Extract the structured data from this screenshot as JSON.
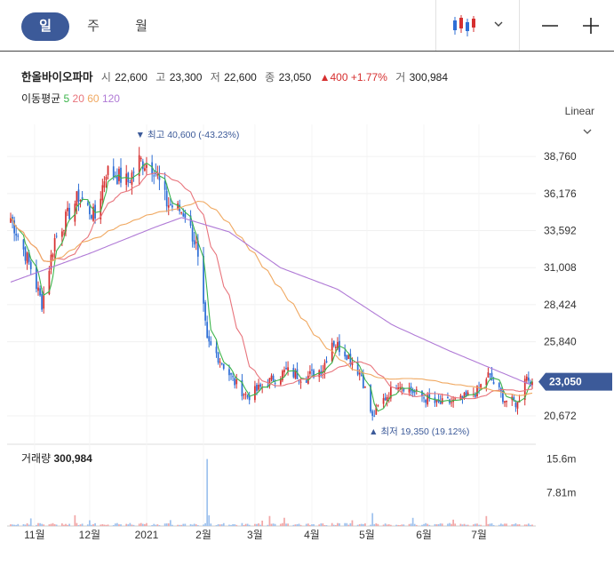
{
  "tabs": [
    {
      "label": "일",
      "active": true
    },
    {
      "label": "주",
      "active": false
    },
    {
      "label": "월",
      "active": false
    }
  ],
  "toolbar": {
    "chart_type_icon": "candlestick-icon",
    "dropdown_icon": "chevron-down-icon",
    "zoom_out_icon": "minus-icon",
    "zoom_in_icon": "plus-icon"
  },
  "stock": {
    "name": "한올바이오파마",
    "open_label": "시",
    "open": "22,600",
    "high_label": "고",
    "high": "23,300",
    "low_label": "저",
    "low": "22,600",
    "close_label": "종",
    "close": "23,050",
    "change": "▲400 +1.77%",
    "volume_label": "거",
    "volume": "300,984"
  },
  "ma": {
    "label": "이동평균",
    "p5": "5",
    "p20": "20",
    "p60": "60",
    "p120": "120"
  },
  "scale_mode": "Linear",
  "colors": {
    "up": "#d62f2f",
    "down": "#2f6fd6",
    "ma5": "#3cb44b",
    "ma20": "#e8747c",
    "ma60": "#f0a860",
    "ma120": "#b07ad6",
    "price_tag": "#3c5a99",
    "tab_active": "#3c5a99"
  },
  "chart_data": {
    "type": "candlestick",
    "price_axis": {
      "ticks": [
        "38,760",
        "36,176",
        "33,592",
        "31,008",
        "28,424",
        "25,840",
        "20,672"
      ],
      "tick_values": [
        38760,
        36176,
        33592,
        31008,
        28424,
        25840,
        20672
      ],
      "range": [
        19000,
        41000
      ]
    },
    "current_price": {
      "label": "23,050",
      "value": 23050
    },
    "high_annotation": {
      "text": "▼ 최고 40,600 (-43.23%)",
      "value": 40600
    },
    "low_annotation": {
      "text": "▲ 최저 19,350 (19.12%)",
      "value": 19350
    },
    "x_axis": {
      "labels": [
        "11월",
        "12월",
        "2021",
        "2월",
        "3월",
        "4월",
        "5월",
        "6월",
        "7월"
      ]
    },
    "volume": {
      "title": "거래량",
      "value": "300,984",
      "ticks": [
        "15.6m",
        "7.81m"
      ],
      "tick_values": [
        15600000,
        7810000
      ]
    },
    "price_keypoints": [
      {
        "x": "10-19",
        "price": 34500
      },
      {
        "x": "10-30",
        "price": 31000
      },
      {
        "x": "11-05",
        "price": 28500
      },
      {
        "x": "11-12",
        "price": 33000
      },
      {
        "x": "11-25",
        "price": 36000
      },
      {
        "x": "12-04",
        "price": 34500
      },
      {
        "x": "12-10",
        "price": 37800
      },
      {
        "x": "12-22",
        "price": 37000
      },
      {
        "x": "12-28",
        "price": 38500
      },
      {
        "x": "01-05",
        "price": 38000
      },
      {
        "x": "01-12",
        "price": 35500
      },
      {
        "x": "01-22",
        "price": 34800
      },
      {
        "x": "01-28",
        "price": 32500
      },
      {
        "x": "02-03",
        "price": 25800
      },
      {
        "x": "02-08",
        "price": 25000
      },
      {
        "x": "02-18",
        "price": 23000
      },
      {
        "x": "02-25",
        "price": 22000
      },
      {
        "x": "03-08",
        "price": 23000
      },
      {
        "x": "03-18",
        "price": 23800
      },
      {
        "x": "03-28",
        "price": 23300
      },
      {
        "x": "04-07",
        "price": 24000
      },
      {
        "x": "04-12",
        "price": 25900
      },
      {
        "x": "04-20",
        "price": 25000
      },
      {
        "x": "04-28",
        "price": 23500
      },
      {
        "x": "05-04",
        "price": 20500
      },
      {
        "x": "05-08",
        "price": 21500
      },
      {
        "x": "05-18",
        "price": 23000
      },
      {
        "x": "05-28",
        "price": 22200
      },
      {
        "x": "06-08",
        "price": 21500
      },
      {
        "x": "06-20",
        "price": 21700
      },
      {
        "x": "06-30",
        "price": 22400
      },
      {
        "x": "07-06",
        "price": 23500
      },
      {
        "x": "07-15",
        "price": 21800
      },
      {
        "x": "07-22",
        "price": 21500
      },
      {
        "x": "07-26",
        "price": 23500
      },
      {
        "x": "07-30",
        "price": 23050
      }
    ],
    "ma120_keypoints": [
      {
        "x": "10-19",
        "price": 30000
      },
      {
        "x": "12-01",
        "price": 32000
      },
      {
        "x": "01-05",
        "price": 33800
      },
      {
        "x": "01-20",
        "price": 34500
      },
      {
        "x": "02-15",
        "price": 33500
      },
      {
        "x": "03-15",
        "price": 31000
      },
      {
        "x": "04-15",
        "price": 29500
      },
      {
        "x": "05-15",
        "price": 27000
      },
      {
        "x": "06-15",
        "price": 25200
      },
      {
        "x": "07-15",
        "price": 23600
      },
      {
        "x": "07-30",
        "price": 22800
      }
    ]
  }
}
